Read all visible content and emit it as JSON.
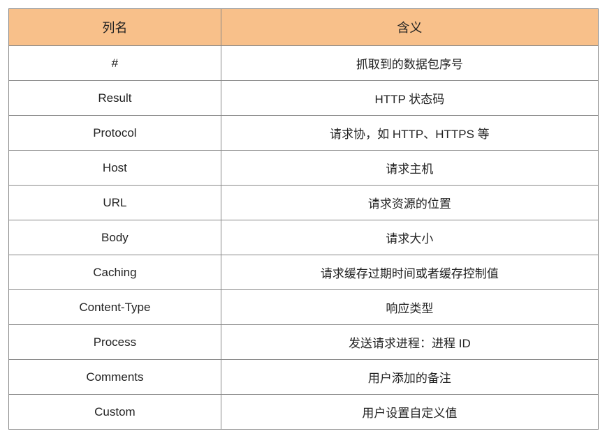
{
  "table": {
    "header_bg": "#f8c08a",
    "border_color": "#888888",
    "text_color": "#222222",
    "header_fontsize": 18,
    "cell_fontsize": 17,
    "columns": [
      {
        "label": "列名",
        "width_pct": 36
      },
      {
        "label": "含义",
        "width_pct": 64
      }
    ],
    "rows": [
      {
        "name": "#",
        "meaning": "抓取到的数据包序号"
      },
      {
        "name": "Result",
        "meaning": "HTTP 状态码"
      },
      {
        "name": "Protocol",
        "meaning": "请求协，如 HTTP、HTTPS 等"
      },
      {
        "name": "Host",
        "meaning": "请求主机"
      },
      {
        "name": "URL",
        "meaning": "请求资源的位置"
      },
      {
        "name": "Body",
        "meaning": "请求大小"
      },
      {
        "name": "Caching",
        "meaning": "请求缓存过期时间或者缓存控制值"
      },
      {
        "name": "Content-Type",
        "meaning": "响应类型"
      },
      {
        "name": "Process",
        "meaning": "发送请求进程：进程 ID"
      },
      {
        "name": "Comments",
        "meaning": "用户添加的备注"
      },
      {
        "name": "Custom",
        "meaning": "用户设置自定义值"
      }
    ]
  }
}
